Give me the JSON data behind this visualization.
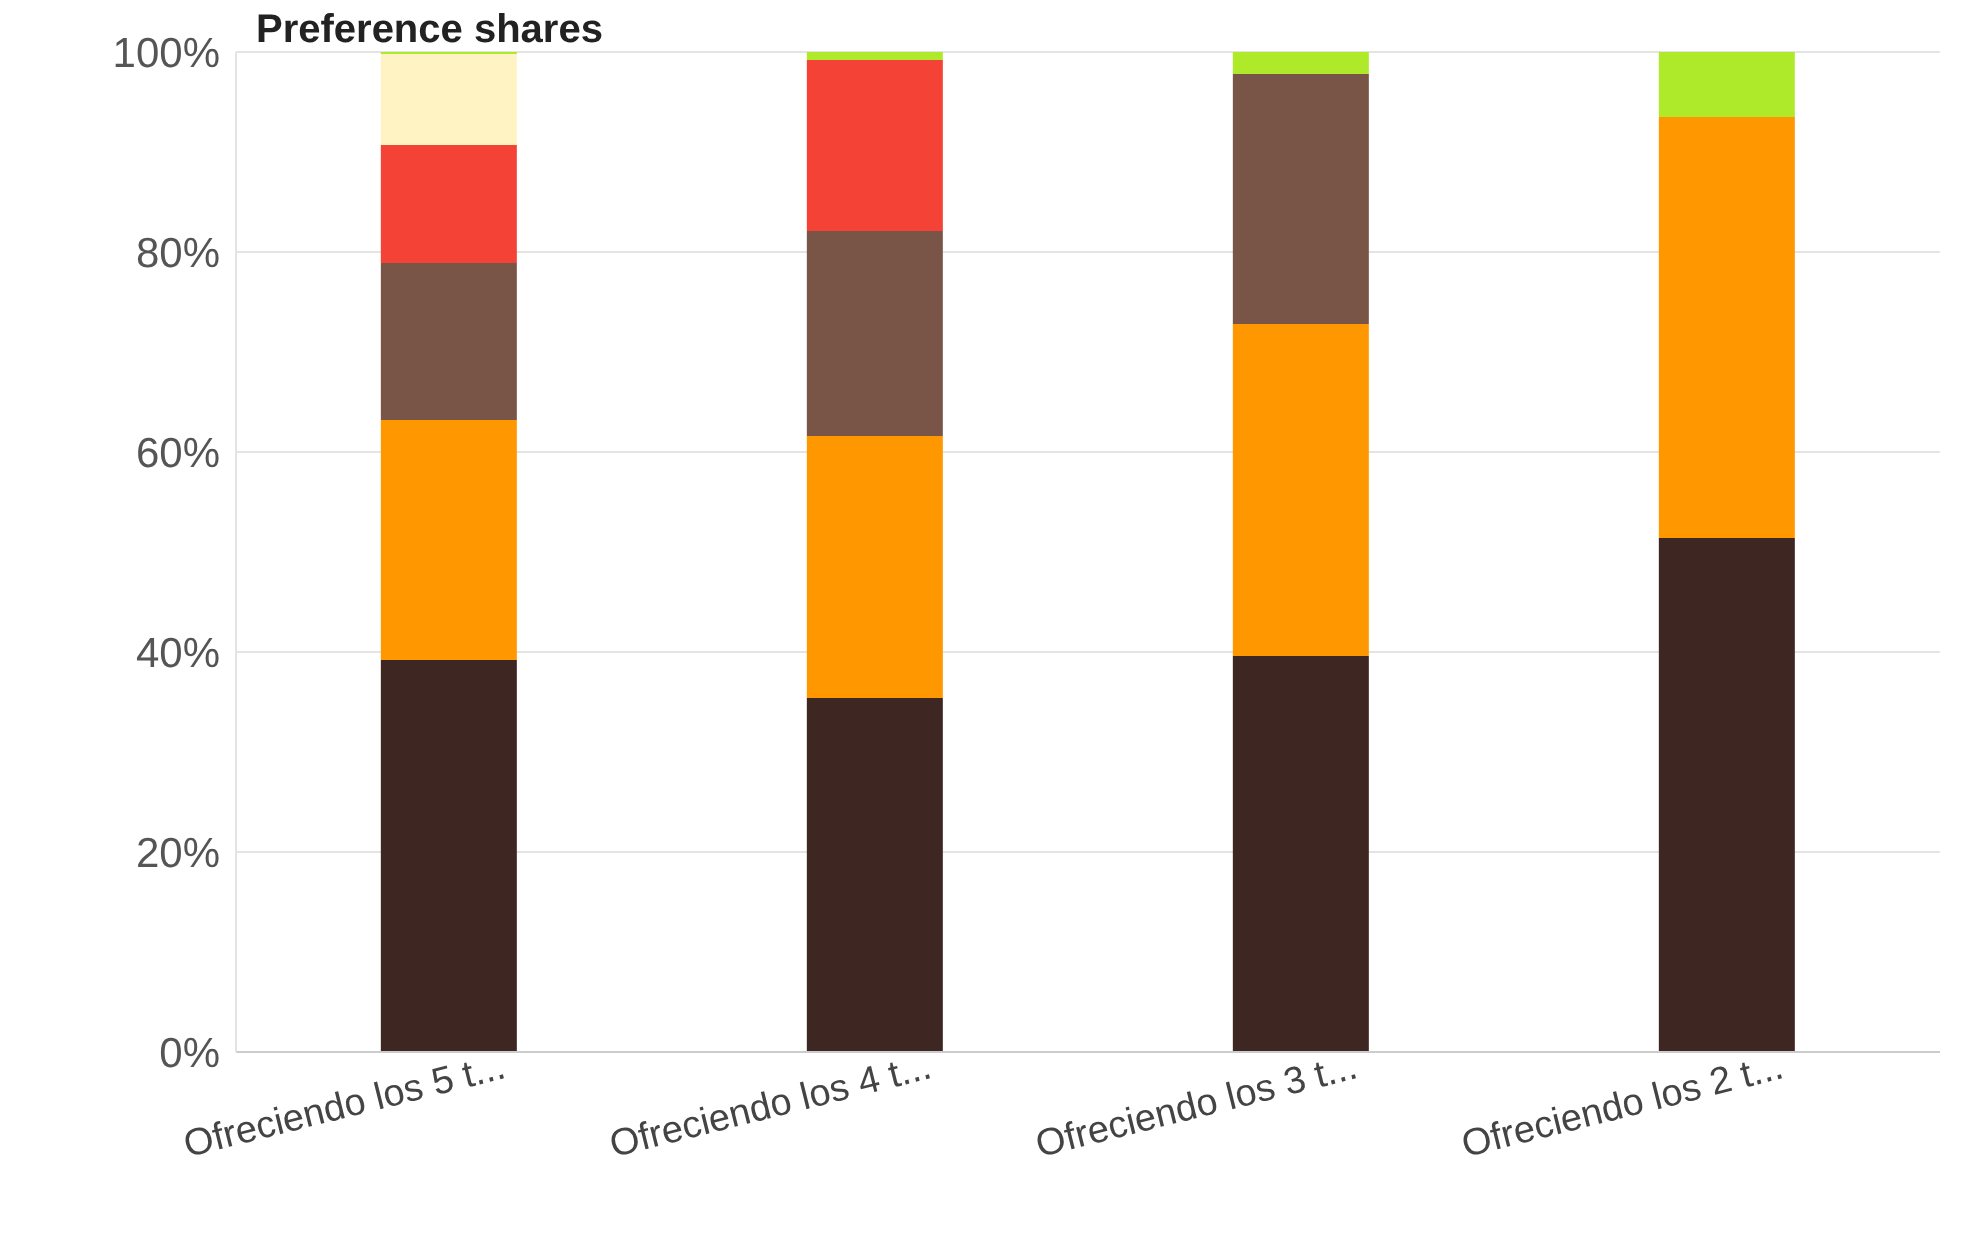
{
  "chart_data": {
    "type": "bar",
    "title": "Preference shares",
    "stacked": true,
    "categories": [
      "Ofreciendo los 5 t...",
      "Ofreciendo los 4 t...",
      "Ofreciendo los 3 t...",
      "Ofreciendo los 2 t..."
    ],
    "series": [
      {
        "color": "#3e2723",
        "values": [
          39.2,
          35.4,
          39.6,
          51.4
        ]
      },
      {
        "color": "#ff9800",
        "values": [
          24,
          26.2,
          33.2,
          42.1
        ]
      },
      {
        "color": "#795548",
        "values": [
          15.7,
          20.5,
          25,
          0
        ]
      },
      {
        "color": "#f44336",
        "values": [
          11.8,
          17.1,
          0,
          0
        ]
      },
      {
        "color": "#fff3c4",
        "values": [
          9.1,
          0,
          0,
          0
        ]
      },
      {
        "color": "#aeea2a",
        "values": [
          0.2,
          0.8,
          2.2,
          6.5
        ]
      }
    ],
    "ylim": [
      0,
      100
    ],
    "yticks": [
      {
        "value": 0,
        "label": "0%"
      },
      {
        "value": 20,
        "label": "20%"
      },
      {
        "value": 40,
        "label": "40%"
      },
      {
        "value": 60,
        "label": "60%"
      },
      {
        "value": 80,
        "label": "80%"
      },
      {
        "value": 100,
        "label": "100%"
      }
    ],
    "grid": "y",
    "legend": false
  }
}
